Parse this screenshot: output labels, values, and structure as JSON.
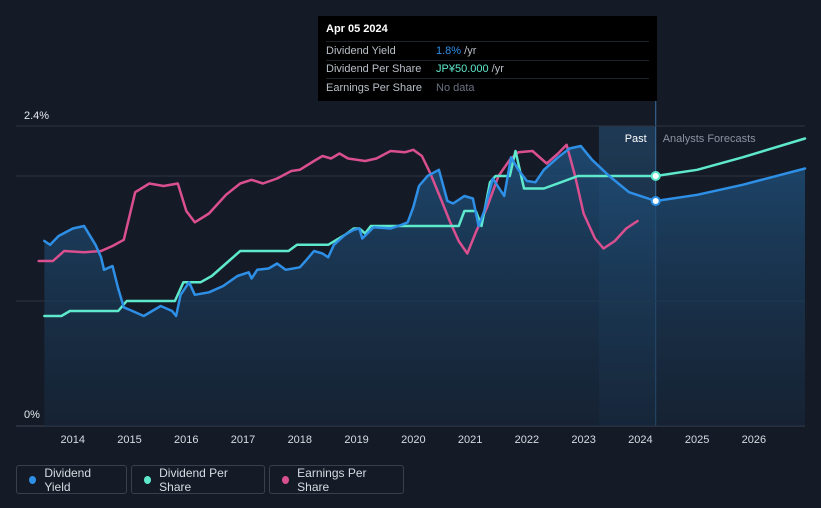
{
  "tooltip": {
    "date": "Apr 05 2024",
    "rows": [
      {
        "label": "Dividend Yield",
        "value": "1.8%",
        "unit": " /yr"
      },
      {
        "label": "Dividend Per Share",
        "value": "JP¥50.000",
        "unit": " /yr"
      },
      {
        "label": "Earnings Per Share",
        "value": "No data",
        "unit": ""
      }
    ]
  },
  "chart_data": {
    "type": "line",
    "title": "",
    "xlabel": "",
    "ylabel": "",
    "y_ticks": [
      "2.4%",
      "0%"
    ],
    "x_ticks": [
      "2014",
      "2015",
      "2016",
      "2017",
      "2018",
      "2019",
      "2020",
      "2021",
      "2022",
      "2023",
      "2024",
      "2025",
      "2026"
    ],
    "xlim": [
      2013.0,
      2026.9
    ],
    "ylim": [
      0,
      2.4
    ],
    "past_label": "Past",
    "forecast_label": "Analysts Forecasts",
    "forecast_start": 2023.27,
    "forecast_now": 2024.27,
    "grid": true,
    "legend_position": "bottom-left",
    "colors": {
      "dividend_yield": "#2e8fe6",
      "dividend_per_share": "#5ee8cc",
      "earnings_per_share": "#d94f8f"
    },
    "series": [
      {
        "key": "dividend_yield",
        "name": "Dividend Yield",
        "points": [
          [
            2013.5,
            1.48
          ],
          [
            2013.6,
            1.45
          ],
          [
            2013.75,
            1.52
          ],
          [
            2014.0,
            1.58
          ],
          [
            2014.2,
            1.6
          ],
          [
            2014.4,
            1.45
          ],
          [
            2014.5,
            1.35
          ],
          [
            2014.55,
            1.25
          ],
          [
            2014.7,
            1.28
          ],
          [
            2014.8,
            1.1
          ],
          [
            2014.9,
            0.95
          ],
          [
            2015.05,
            0.92
          ],
          [
            2015.25,
            0.88
          ],
          [
            2015.4,
            0.92
          ],
          [
            2015.55,
            0.96
          ],
          [
            2015.75,
            0.92
          ],
          [
            2015.82,
            0.88
          ],
          [
            2015.9,
            1.05
          ],
          [
            2016.05,
            1.15
          ],
          [
            2016.15,
            1.05
          ],
          [
            2016.4,
            1.07
          ],
          [
            2016.65,
            1.12
          ],
          [
            2016.9,
            1.2
          ],
          [
            2017.1,
            1.23
          ],
          [
            2017.15,
            1.18
          ],
          [
            2017.25,
            1.25
          ],
          [
            2017.45,
            1.26
          ],
          [
            2017.6,
            1.3
          ],
          [
            2017.75,
            1.25
          ],
          [
            2018.0,
            1.27
          ],
          [
            2018.1,
            1.32
          ],
          [
            2018.25,
            1.4
          ],
          [
            2018.4,
            1.38
          ],
          [
            2018.5,
            1.35
          ],
          [
            2018.6,
            1.45
          ],
          [
            2018.8,
            1.53
          ],
          [
            2018.95,
            1.57
          ],
          [
            2019.05,
            1.58
          ],
          [
            2019.1,
            1.5
          ],
          [
            2019.3,
            1.59
          ],
          [
            2019.6,
            1.58
          ],
          [
            2019.8,
            1.61
          ],
          [
            2019.9,
            1.63
          ],
          [
            2020.0,
            1.75
          ],
          [
            2020.1,
            1.92
          ],
          [
            2020.25,
            2.0
          ],
          [
            2020.45,
            2.05
          ],
          [
            2020.6,
            1.8
          ],
          [
            2020.7,
            1.78
          ],
          [
            2020.9,
            1.84
          ],
          [
            2021.05,
            1.82
          ],
          [
            2021.15,
            1.6
          ],
          [
            2021.25,
            1.72
          ],
          [
            2021.4,
            1.98
          ],
          [
            2021.6,
            1.84
          ],
          [
            2021.72,
            2.15
          ],
          [
            2021.85,
            2.05
          ],
          [
            2022.0,
            1.96
          ],
          [
            2022.15,
            1.95
          ],
          [
            2022.3,
            2.05
          ],
          [
            2022.55,
            2.15
          ],
          [
            2022.75,
            2.22
          ],
          [
            2022.95,
            2.24
          ],
          [
            2023.15,
            2.13
          ],
          [
            2023.45,
            2.0
          ],
          [
            2023.8,
            1.87
          ],
          [
            2024.27,
            1.8
          ],
          [
            2025.0,
            1.85
          ],
          [
            2025.8,
            1.93
          ],
          [
            2026.9,
            2.06
          ]
        ]
      },
      {
        "key": "dividend_per_share",
        "name": "Dividend Per Share",
        "points": [
          [
            2013.5,
            0.88
          ],
          [
            2013.8,
            0.88
          ],
          [
            2013.95,
            0.92
          ],
          [
            2014.4,
            0.92
          ],
          [
            2014.8,
            0.92
          ],
          [
            2014.95,
            1.0
          ],
          [
            2015.8,
            1.0
          ],
          [
            2015.95,
            1.15
          ],
          [
            2016.25,
            1.15
          ],
          [
            2016.45,
            1.2
          ],
          [
            2016.7,
            1.3
          ],
          [
            2016.95,
            1.4
          ],
          [
            2017.25,
            1.4
          ],
          [
            2017.8,
            1.4
          ],
          [
            2017.95,
            1.45
          ],
          [
            2018.5,
            1.45
          ],
          [
            2018.8,
            1.53
          ],
          [
            2018.95,
            1.58
          ],
          [
            2019.05,
            1.58
          ],
          [
            2019.15,
            1.54
          ],
          [
            2019.25,
            1.6
          ],
          [
            2019.6,
            1.6
          ],
          [
            2020.0,
            1.6
          ],
          [
            2020.5,
            1.6
          ],
          [
            2020.8,
            1.6
          ],
          [
            2020.9,
            1.72
          ],
          [
            2021.1,
            1.72
          ],
          [
            2021.2,
            1.6
          ],
          [
            2021.35,
            1.95
          ],
          [
            2021.45,
            2.0
          ],
          [
            2021.7,
            2.0
          ],
          [
            2021.8,
            2.2
          ],
          [
            2021.95,
            1.9
          ],
          [
            2022.3,
            1.9
          ],
          [
            2022.6,
            1.95
          ],
          [
            2022.9,
            2.0
          ],
          [
            2023.3,
            2.0
          ],
          [
            2024.27,
            2.0
          ],
          [
            2025.0,
            2.05
          ],
          [
            2025.8,
            2.15
          ],
          [
            2026.9,
            2.3
          ]
        ]
      },
      {
        "key": "earnings_per_share",
        "name": "Earnings Per Share",
        "points": [
          [
            2013.4,
            1.32
          ],
          [
            2013.65,
            1.32
          ],
          [
            2013.85,
            1.4
          ],
          [
            2014.2,
            1.39
          ],
          [
            2014.5,
            1.4
          ],
          [
            2014.7,
            1.44
          ],
          [
            2014.9,
            1.49
          ],
          [
            2015.1,
            1.87
          ],
          [
            2015.35,
            1.94
          ],
          [
            2015.6,
            1.92
          ],
          [
            2015.85,
            1.94
          ],
          [
            2016.0,
            1.72
          ],
          [
            2016.15,
            1.63
          ],
          [
            2016.4,
            1.7
          ],
          [
            2016.7,
            1.85
          ],
          [
            2016.95,
            1.94
          ],
          [
            2017.15,
            1.97
          ],
          [
            2017.35,
            1.94
          ],
          [
            2017.6,
            1.98
          ],
          [
            2017.85,
            2.04
          ],
          [
            2018.0,
            2.05
          ],
          [
            2018.25,
            2.12
          ],
          [
            2018.4,
            2.16
          ],
          [
            2018.55,
            2.14
          ],
          [
            2018.7,
            2.18
          ],
          [
            2018.85,
            2.14
          ],
          [
            2019.15,
            2.12
          ],
          [
            2019.35,
            2.14
          ],
          [
            2019.6,
            2.2
          ],
          [
            2019.85,
            2.19
          ],
          [
            2020.0,
            2.21
          ],
          [
            2020.15,
            2.16
          ],
          [
            2020.3,
            2.02
          ],
          [
            2020.5,
            1.8
          ],
          [
            2020.65,
            1.63
          ],
          [
            2020.8,
            1.48
          ],
          [
            2020.95,
            1.38
          ],
          [
            2021.1,
            1.55
          ],
          [
            2021.3,
            1.75
          ],
          [
            2021.5,
            2.0
          ],
          [
            2021.7,
            2.13
          ],
          [
            2021.85,
            2.19
          ],
          [
            2022.1,
            2.2
          ],
          [
            2022.35,
            2.1
          ],
          [
            2022.55,
            2.18
          ],
          [
            2022.7,
            2.25
          ],
          [
            2022.85,
            2.0
          ],
          [
            2023.0,
            1.7
          ],
          [
            2023.2,
            1.5
          ],
          [
            2023.35,
            1.42
          ],
          [
            2023.55,
            1.48
          ],
          [
            2023.75,
            1.58
          ],
          [
            2023.95,
            1.64
          ]
        ]
      }
    ],
    "markers": [
      {
        "series": "dividend_per_share",
        "x": 2024.27,
        "y": 2.0
      },
      {
        "series": "dividend_yield",
        "x": 2024.27,
        "y": 1.8
      }
    ]
  },
  "legend": [
    {
      "key": "dividend_yield",
      "label": "Dividend Yield"
    },
    {
      "key": "dividend_per_share",
      "label": "Dividend Per Share"
    },
    {
      "key": "earnings_per_share",
      "label": "Earnings Per Share"
    }
  ]
}
